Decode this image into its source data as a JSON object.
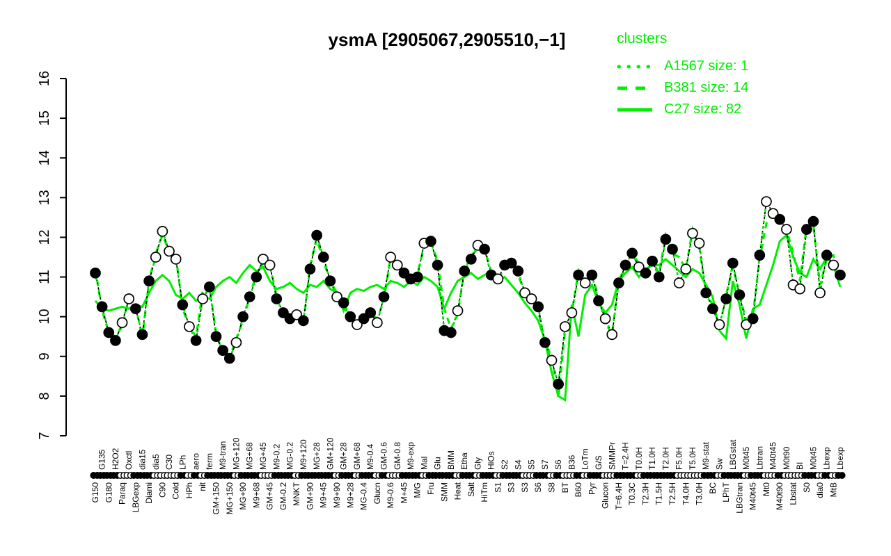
{
  "title_bar": {
    "app": "R plot"
  },
  "legend": {
    "title": "clusters",
    "items": [
      {
        "label": "A1567 size: 1",
        "style": "dotted"
      },
      {
        "label": "B381 size: 14",
        "style": "dashed"
      },
      {
        "label": "C27 size: 82",
        "style": "solid"
      }
    ]
  },
  "colors": {
    "cluster_green": "#00ee00",
    "marker_filled": "#000000",
    "marker_open": "#ffffff",
    "axis_black": "#000000",
    "background": "#ffffff"
  },
  "axis": {
    "y_min": 7,
    "y_max": 16,
    "y_ticks": [
      7,
      8,
      9,
      10,
      11,
      12,
      13,
      14,
      15,
      16
    ]
  },
  "chart_data": {
    "type": "line",
    "title": "ysmA [2905067,2905510,−1]",
    "ylim": [
      7,
      16
    ],
    "grid": false,
    "legend_position": "top-right",
    "categories": [
      "G150",
      "G135",
      "G180",
      "H2O2",
      "Paraq",
      "Oxctl",
      "LBGexp",
      "dia15",
      "Diami",
      "dia5",
      "C90",
      "C30",
      "Cold",
      "LPh",
      "HPh",
      "aero",
      "nit",
      "ferm",
      "GM+150",
      "M9-tran",
      "MG+150",
      "MG+120",
      "MG+90",
      "MG+68",
      "M9+68",
      "MG+45",
      "GM+45",
      "M9-0.2",
      "GM-0.2",
      "MG-0.2",
      "MNKT",
      "M9+120",
      "GM+90",
      "MG+28",
      "M9+45",
      "GM+120",
      "M9+90",
      "GM+28",
      "M9+28",
      "GM+68",
      "MG-0.4",
      "M9-0.4",
      "Glucn",
      "GM-0.6",
      "M9-0.6",
      "GM-0.8",
      "M+45",
      "M9-exp",
      "M/G",
      "Mal",
      "Fru",
      "Glu",
      "SMM",
      "BMM",
      "Heat",
      "Etha",
      "Salt",
      "Gly",
      "HiTm",
      "HiOs",
      "S1",
      "S2",
      "S3",
      "S4",
      "S3",
      "S5",
      "S6",
      "S7",
      "S8",
      "S6",
      "BT",
      "B36",
      "B60",
      "LoTm",
      "Pyr",
      "G/S",
      "Glucon",
      "SMMPr",
      "T=6.4H",
      "T=2.4H",
      "T0.3C",
      "T0.0H",
      "T2.3H",
      "T1.0H",
      "T1.5H",
      "T2.0H",
      "T2.5H",
      "F5.0H",
      "T4.0H",
      "T5.0H",
      "T3.0H",
      "M9-stat",
      "BC",
      "Sw",
      "LPhT",
      "LBGstat",
      "LBGtran",
      "M0t45",
      "M40t45",
      "Lbtran",
      "Mt0",
      "M40t45",
      "M40t90",
      "M0t90",
      "Lbstat",
      "BI",
      "S0",
      "M0t45",
      "dia0",
      "Lbexp",
      "MtB",
      "Lbexp"
    ],
    "series": [
      {
        "name": "ysmA",
        "role": "gene-profile",
        "line": "black-dashed",
        "marker": "circle",
        "values": [
          11.1,
          10.25,
          9.6,
          9.4,
          9.85,
          10.45,
          10.2,
          9.55,
          10.9,
          11.5,
          12.15,
          11.65,
          11.45,
          10.3,
          9.75,
          9.4,
          10.45,
          10.75,
          9.5,
          9.15,
          8.95,
          9.35,
          10.0,
          10.5,
          11.0,
          11.45,
          11.3,
          10.45,
          10.1,
          9.95,
          10.05,
          9.9,
          11.2,
          12.05,
          11.5,
          10.9,
          10.5,
          10.35,
          10.0,
          9.8,
          9.95,
          10.1,
          9.85,
          10.5,
          11.5,
          11.3,
          11.1,
          10.95,
          11.0,
          11.85,
          11.9,
          11.3,
          9.65,
          9.6,
          10.15,
          11.15,
          11.45,
          11.8,
          11.7,
          11.05,
          10.95,
          11.3,
          11.35,
          11.15,
          10.6,
          10.45,
          10.25,
          9.35,
          8.9,
          8.3,
          9.75,
          10.1,
          11.05,
          10.85,
          11.05,
          10.4,
          9.95,
          9.55,
          10.85,
          11.3,
          11.6,
          11.25,
          11.1,
          11.4,
          11.0,
          11.95,
          11.7,
          10.85,
          11.2,
          12.1,
          11.85,
          10.6,
          10.2,
          9.8,
          10.45,
          11.35,
          10.55,
          9.8,
          9.95,
          11.55,
          12.9,
          12.6,
          12.45,
          12.2,
          10.8,
          10.7,
          12.2,
          12.4,
          10.6,
          11.55,
          11.3,
          11.05
        ],
        "marker_filled": [
          1,
          1,
          1,
          1,
          0,
          0,
          1,
          1,
          1,
          0,
          0,
          0,
          0,
          1,
          0,
          1,
          0,
          1,
          1,
          1,
          1,
          0,
          1,
          1,
          1,
          0,
          0,
          1,
          1,
          1,
          0,
          1,
          1,
          1,
          1,
          1,
          0,
          1,
          1,
          0,
          1,
          1,
          0,
          1,
          0,
          0,
          1,
          1,
          1,
          0,
          1,
          1,
          1,
          1,
          0,
          1,
          1,
          0,
          1,
          1,
          0,
          1,
          1,
          1,
          0,
          0,
          1,
          1,
          0,
          1,
          0,
          0,
          1,
          0,
          1,
          1,
          0,
          0,
          1,
          1,
          1,
          0,
          1,
          1,
          1,
          1,
          1,
          0,
          0,
          0,
          0,
          1,
          1,
          0,
          1,
          1,
          1,
          0,
          1,
          1,
          0,
          0,
          1,
          0,
          0,
          0,
          1,
          1,
          0,
          1,
          0,
          1
        ]
      },
      {
        "name": "A1567",
        "legend_label": "A1567 size: 1",
        "size": 1,
        "line": "green-dotted",
        "values": [
          11.1,
          10.25,
          9.6,
          9.4,
          9.85,
          10.45,
          10.2,
          9.55,
          10.9,
          11.5,
          12.15,
          11.65,
          11.45,
          10.3,
          9.75,
          9.4,
          10.45,
          10.75,
          9.5,
          9.15,
          8.95,
          9.35,
          10.0,
          10.5,
          11.0,
          11.45,
          11.3,
          10.45,
          10.1,
          9.95,
          10.05,
          9.9,
          11.2,
          12.05,
          11.5,
          10.9,
          10.5,
          10.35,
          10.0,
          9.8,
          9.95,
          10.1,
          9.85,
          10.5,
          11.5,
          11.3,
          11.1,
          10.95,
          11.0,
          11.85,
          11.9,
          11.3,
          9.65,
          9.6,
          10.15,
          11.15,
          11.45,
          11.8,
          11.7,
          11.05,
          10.95,
          11.3,
          11.35,
          11.15,
          10.6,
          10.45,
          10.25,
          9.35,
          8.9,
          8.3,
          9.75,
          10.1,
          11.05,
          10.85,
          11.05,
          10.4,
          9.95,
          9.55,
          10.85,
          11.3,
          11.6,
          11.25,
          11.1,
          11.4,
          11.0,
          11.95,
          11.7,
          10.85,
          11.2,
          12.1,
          11.85,
          10.6,
          10.2,
          9.8,
          10.45,
          11.35,
          10.55,
          9.8,
          9.95,
          11.55,
          12.9,
          12.6,
          12.45,
          12.2,
          10.8,
          10.7,
          12.2,
          12.4,
          10.6,
          11.55,
          11.3,
          11.05
        ]
      },
      {
        "name": "B381",
        "legend_label": "B381 size: 14",
        "size": 14,
        "line": "green-dashed",
        "values": [
          11.2,
          10.15,
          9.6,
          9.5,
          9.75,
          10.45,
          10.3,
          9.45,
          10.9,
          11.6,
          12.05,
          11.65,
          11.55,
          10.2,
          9.75,
          9.5,
          10.65,
          10.75,
          9.6,
          9.05,
          8.95,
          9.45,
          9.9,
          10.5,
          11.1,
          11.35,
          11.3,
          10.55,
          10.0,
          9.95,
          10.15,
          9.8,
          11.3,
          11.95,
          11.4,
          10.9,
          10.6,
          10.25,
          10.0,
          9.9,
          9.85,
          10.1,
          9.95,
          10.4,
          11.5,
          11.4,
          11.0,
          10.95,
          11.1,
          11.75,
          11.9,
          11.4,
          10.2,
          9.7,
          10.05,
          11.15,
          11.55,
          11.7,
          11.7,
          11.15,
          10.85,
          11.3,
          11.45,
          11.05,
          10.6,
          10.55,
          10.15,
          9.35,
          9.0,
          7.95,
          9.65,
          10.1,
          11.15,
          10.75,
          11.05,
          10.5,
          9.85,
          9.55,
          10.95,
          11.2,
          11.6,
          11.35,
          11.0,
          11.4,
          11.1,
          12.05,
          11.6,
          11.5,
          11.2,
          12.2,
          11.75,
          10.6,
          10.3,
          9.7,
          10.55,
          11.25,
          10.55,
          9.9,
          10.05,
          11.45,
          12.35,
          12.6,
          12.35,
          12.2,
          11.6,
          10.9,
          12.3,
          12.3,
          10.8,
          11.45,
          11.55,
          10.95
        ]
      },
      {
        "name": "C27",
        "legend_label": "C27 size: 82",
        "size": 82,
        "line": "green-solid",
        "values": [
          10.4,
          10.2,
          10.15,
          10.2,
          10.25,
          10.2,
          10.3,
          10.25,
          10.6,
          10.9,
          11.05,
          10.9,
          10.55,
          10.45,
          10.6,
          10.4,
          10.5,
          10.45,
          10.75,
          10.9,
          11.0,
          10.85,
          11.1,
          11.3,
          11.15,
          11.25,
          10.9,
          10.7,
          10.75,
          10.85,
          10.7,
          10.6,
          10.8,
          10.75,
          10.9,
          10.7,
          10.6,
          10.15,
          10.6,
          10.7,
          10.65,
          10.75,
          10.8,
          10.7,
          10.9,
          10.85,
          10.75,
          10.9,
          10.8,
          11.0,
          10.9,
          10.75,
          10.2,
          10.6,
          10.9,
          11.0,
          11.1,
          10.95,
          11.05,
          11.15,
          10.9,
          11.0,
          10.8,
          10.6,
          10.35,
          10.15,
          9.9,
          9.4,
          8.6,
          8.0,
          7.9,
          10.3,
          9.5,
          10.55,
          10.8,
          10.35,
          10.1,
          10.3,
          10.9,
          11.1,
          11.25,
          11.0,
          11.2,
          11.3,
          11.3,
          11.45,
          11.3,
          11.15,
          11.0,
          11.2,
          11.1,
          10.8,
          10.5,
          9.65,
          9.45,
          10.9,
          10.3,
          9.45,
          10.2,
          10.3,
          10.8,
          11.3,
          11.9,
          12.05,
          11.5,
          11.1,
          11.0,
          11.45,
          11.2,
          11.5,
          11.3,
          10.75
        ]
      }
    ]
  }
}
